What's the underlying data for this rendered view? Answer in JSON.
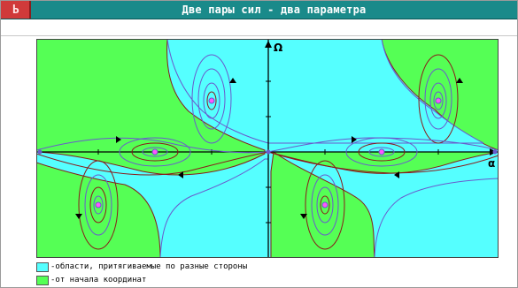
{
  "window": {
    "title": "Две пары сил - два параметра",
    "sys_menu_glyph": "Ь",
    "title_color": "#1a8a8a",
    "sys_menu_color": "#d03a3a"
  },
  "chart_data": {
    "type": "phase-portrait",
    "xlabel": "α",
    "ylabel": "Ω",
    "region_colors": {
      "cyan": "#55ffff",
      "green": "#55ff55"
    },
    "fixed_point_color": "#ff55ff",
    "trajectory_colors": [
      "#6a5acd",
      "#8b1a1a",
      "#000000"
    ]
  },
  "legend": {
    "items": [
      {
        "label": "-области, притягиваемые по разные стороны",
        "color": "#55ffff"
      },
      {
        "label": "-от начала координат",
        "color": "#55ff55"
      }
    ]
  }
}
